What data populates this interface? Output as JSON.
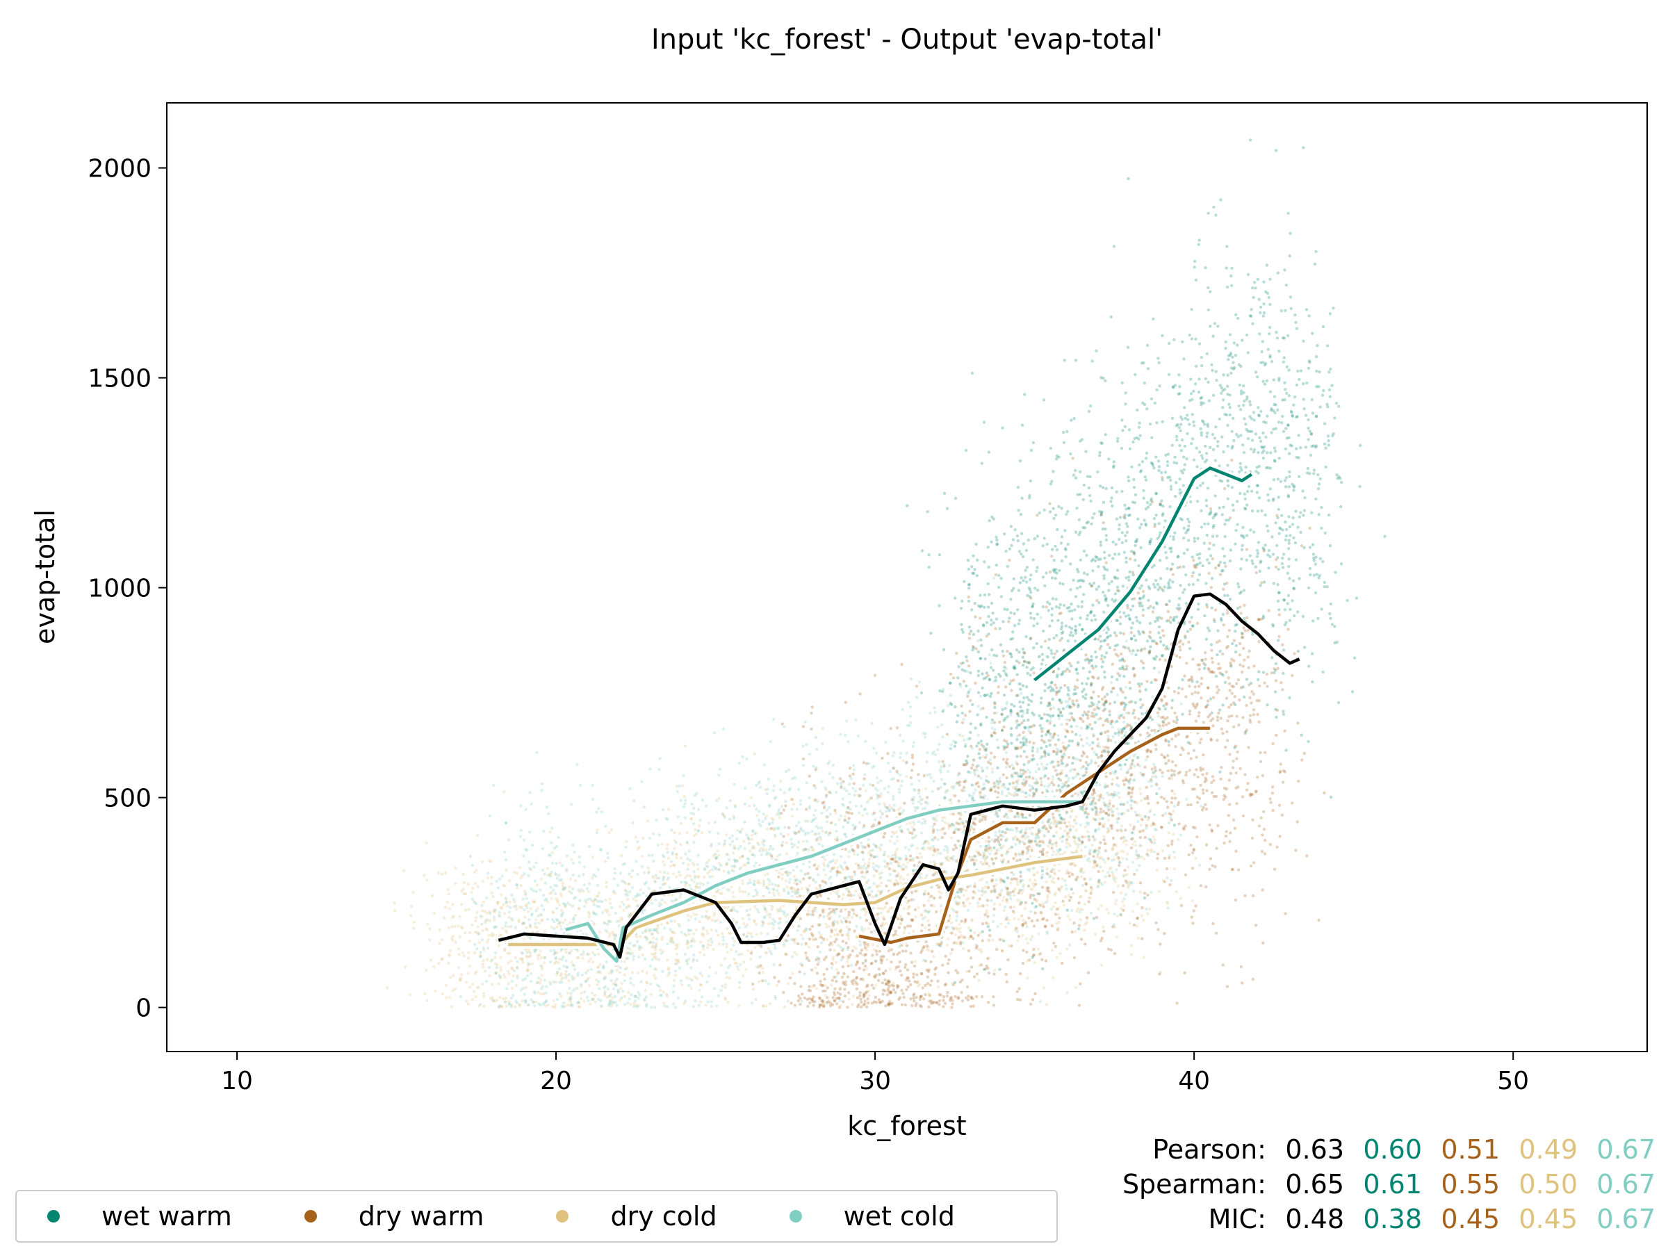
{
  "chart_data": {
    "type": "scatter",
    "title": "Input 'kc_forest' - Output 'evap-total'",
    "xlabel": "kc_forest",
    "ylabel": "evap-total",
    "xlim": [
      7.8,
      54.2
    ],
    "ylim": [
      -105,
      2155
    ],
    "xticks": [
      10,
      20,
      30,
      40,
      50
    ],
    "yticks": [
      0,
      500,
      1000,
      1500,
      2000
    ],
    "grid": false,
    "legend_position": "bottom-left outside",
    "series": [
      {
        "name": "wet warm",
        "color": "#018571",
        "scatter_center": {
          "x": 37.5,
          "y": 1050
        },
        "trend": [
          [
            35.0,
            780
          ],
          [
            36.0,
            840
          ],
          [
            37.0,
            900
          ],
          [
            38.0,
            990
          ],
          [
            39.0,
            1110
          ],
          [
            40.0,
            1260
          ],
          [
            40.5,
            1285
          ],
          [
            41.0,
            1270
          ],
          [
            41.5,
            1255
          ],
          [
            41.8,
            1270
          ]
        ]
      },
      {
        "name": "dry warm",
        "color": "#a6611a",
        "scatter_center": {
          "x": 37.0,
          "y": 520
        },
        "trend": [
          [
            29.5,
            170
          ],
          [
            30.5,
            155
          ],
          [
            31.0,
            165
          ],
          [
            32.0,
            175
          ],
          [
            32.5,
            300
          ],
          [
            33.0,
            400
          ],
          [
            34.0,
            440
          ],
          [
            35.0,
            440
          ],
          [
            36.0,
            510
          ],
          [
            37.0,
            560
          ],
          [
            38.0,
            610
          ],
          [
            39.0,
            650
          ],
          [
            39.5,
            665
          ],
          [
            40.5,
            665
          ]
        ]
      },
      {
        "name": "dry cold",
        "color": "#dfc27d",
        "scatter_center": {
          "x": 25.0,
          "y": 320
        },
        "trend": [
          [
            18.5,
            150
          ],
          [
            20.0,
            150
          ],
          [
            21.0,
            150
          ],
          [
            22.0,
            150
          ],
          [
            22.5,
            190
          ],
          [
            24.0,
            230
          ],
          [
            25.0,
            250
          ],
          [
            27.0,
            255
          ],
          [
            29.0,
            245
          ],
          [
            30.0,
            250
          ],
          [
            31.0,
            285
          ],
          [
            32.0,
            305
          ],
          [
            33.0,
            315
          ],
          [
            34.0,
            330
          ],
          [
            35.0,
            345
          ],
          [
            36.5,
            360
          ]
        ]
      },
      {
        "name": "wet cold",
        "color": "#80cdc1",
        "scatter_center": {
          "x": 25.5,
          "y": 420
        },
        "trend": [
          [
            20.3,
            185
          ],
          [
            21.0,
            200
          ],
          [
            21.5,
            140
          ],
          [
            21.9,
            110
          ],
          [
            22.1,
            190
          ],
          [
            23.0,
            220
          ],
          [
            24.0,
            250
          ],
          [
            25.0,
            290
          ],
          [
            26.0,
            320
          ],
          [
            27.0,
            340
          ],
          [
            28.0,
            360
          ],
          [
            29.0,
            390
          ],
          [
            30.0,
            420
          ],
          [
            31.0,
            450
          ],
          [
            32.0,
            470
          ],
          [
            33.0,
            480
          ],
          [
            34.0,
            490
          ],
          [
            35.0,
            490
          ],
          [
            36.5,
            490
          ]
        ]
      },
      {
        "name": "",
        "color": "#000000",
        "trend": [
          [
            18.2,
            160
          ],
          [
            19.0,
            175
          ],
          [
            20.0,
            170
          ],
          [
            21.0,
            165
          ],
          [
            21.8,
            150
          ],
          [
            22.0,
            120
          ],
          [
            22.2,
            190
          ],
          [
            23.0,
            270
          ],
          [
            24.0,
            280
          ],
          [
            25.0,
            250
          ],
          [
            25.5,
            200
          ],
          [
            25.8,
            155
          ],
          [
            26.5,
            155
          ],
          [
            27.0,
            160
          ],
          [
            27.5,
            220
          ],
          [
            28.0,
            270
          ],
          [
            29.0,
            290
          ],
          [
            29.5,
            300
          ],
          [
            30.0,
            200
          ],
          [
            30.3,
            150
          ],
          [
            30.8,
            260
          ],
          [
            31.5,
            340
          ],
          [
            32.0,
            330
          ],
          [
            32.3,
            280
          ],
          [
            32.6,
            320
          ],
          [
            33.0,
            460
          ],
          [
            34.0,
            480
          ],
          [
            35.0,
            470
          ],
          [
            36.0,
            480
          ],
          [
            36.5,
            490
          ],
          [
            37.0,
            560
          ],
          [
            37.5,
            610
          ],
          [
            38.0,
            650
          ],
          [
            38.5,
            690
          ],
          [
            39.0,
            760
          ],
          [
            39.5,
            900
          ],
          [
            40.0,
            980
          ],
          [
            40.5,
            985
          ],
          [
            41.0,
            960
          ],
          [
            41.5,
            920
          ],
          [
            42.0,
            890
          ],
          [
            42.5,
            850
          ],
          [
            43.0,
            820
          ],
          [
            43.3,
            830
          ]
        ]
      }
    ],
    "stats": [
      {
        "label": "Pearson:",
        "values": [
          "0.63",
          "0.60",
          "0.51",
          "0.49",
          "0.67"
        ]
      },
      {
        "label": "Spearman:",
        "values": [
          "0.65",
          "0.61",
          "0.55",
          "0.50",
          "0.67"
        ]
      },
      {
        "label": "MIC:",
        "values": [
          "0.48",
          "0.38",
          "0.45",
          "0.45",
          "0.67"
        ]
      }
    ],
    "stat_colors": [
      "#000000",
      "#018571",
      "#a6611a",
      "#dfc27d",
      "#80cdc1"
    ]
  }
}
